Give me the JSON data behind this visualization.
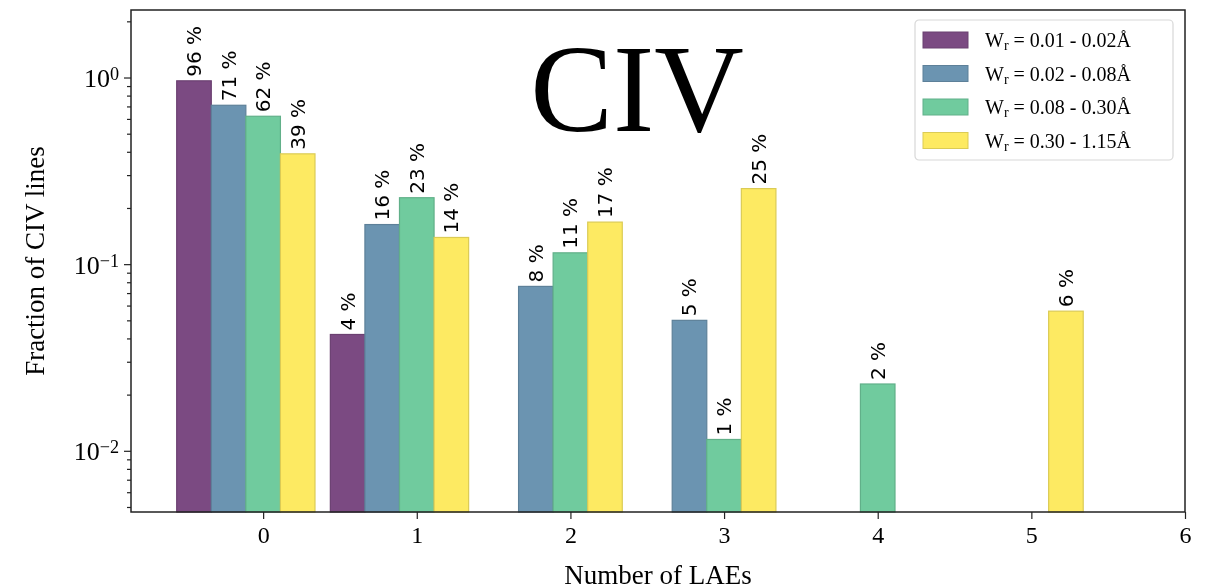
{
  "chart_data": {
    "type": "bar",
    "title": "CIV",
    "xlabel": "Number of LAEs",
    "ylabel": "Fraction of CIV lines",
    "x": [
      0,
      1,
      2,
      3,
      4,
      5
    ],
    "series": [
      {
        "name": "W$_{r}$ = 0.01 - 0.02Å",
        "color": "#7b4a82",
        "values": [
          0.96,
          0.042,
          null,
          null,
          null,
          null
        ],
        "value_labels": [
          "96 %",
          "4 %",
          null,
          null,
          null,
          null
        ]
      },
      {
        "name": "W$_{r}$ = 0.02 - 0.08Å",
        "color": "#6b94b1",
        "values": [
          0.71,
          0.163,
          0.076,
          0.05,
          null,
          null
        ],
        "value_labels": [
          "71 %",
          "16 %",
          "8 %",
          "5 %",
          null,
          null
        ]
      },
      {
        "name": "W$_{r}$ = 0.08 - 0.30Å",
        "color": "#70cb9e",
        "values": [
          0.62,
          0.227,
          0.115,
          0.0115,
          0.0228,
          null
        ],
        "value_labels": [
          "62 %",
          "23 %",
          "11 %",
          "1 %",
          "2 %",
          null
        ]
      },
      {
        "name": "W$_{r}$ = 0.30 - 1.15Å",
        "color": "#fdea62",
        "values": [
          0.39,
          0.139,
          0.168,
          0.254,
          null,
          0.056
        ],
        "value_labels": [
          "39 %",
          "14 %",
          "17 %",
          "25 %",
          null,
          "6 %"
        ]
      }
    ],
    "xlim": [
      -0.86,
      6
    ],
    "xticks": [
      0,
      1,
      2,
      3,
      4,
      5,
      6
    ],
    "ylim": [
      0.0047,
      2.3
    ],
    "yticks": [
      {
        "value": 0.005,
        "label": null
      },
      {
        "value": 0.006,
        "label": null
      },
      {
        "value": 0.007,
        "label": null
      },
      {
        "value": 0.008,
        "label": null
      },
      {
        "value": 0.009,
        "label": null
      },
      {
        "value": 0.01,
        "label": "10$^{−2}$"
      },
      {
        "value": 0.02,
        "label": null
      },
      {
        "value": 0.03,
        "label": null
      },
      {
        "value": 0.04,
        "label": null
      },
      {
        "value": 0.05,
        "label": null
      },
      {
        "value": 0.06,
        "label": null
      },
      {
        "value": 0.07,
        "label": null
      },
      {
        "value": 0.08,
        "label": null
      },
      {
        "value": 0.09,
        "label": null
      },
      {
        "value": 0.1,
        "label": "10$^{−1}$"
      },
      {
        "value": 0.2,
        "label": null
      },
      {
        "value": 0.3,
        "label": null
      },
      {
        "value": 0.4,
        "label": null
      },
      {
        "value": 0.5,
        "label": null
      },
      {
        "value": 0.6,
        "label": null
      },
      {
        "value": 0.7,
        "label": null
      },
      {
        "value": 0.8,
        "label": null
      },
      {
        "value": 0.9,
        "label": null
      },
      {
        "value": 1,
        "label": "10$^{0}$"
      },
      {
        "value": 2,
        "label": null
      }
    ],
    "log": true,
    "legend": "top right"
  }
}
